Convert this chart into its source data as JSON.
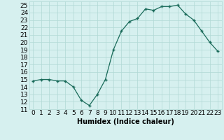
{
  "x": [
    0,
    1,
    2,
    3,
    4,
    5,
    6,
    7,
    8,
    9,
    10,
    11,
    12,
    13,
    14,
    15,
    16,
    17,
    18,
    19,
    20,
    21,
    22,
    23
  ],
  "y": [
    14.8,
    15.0,
    15.0,
    14.8,
    14.8,
    14.0,
    12.2,
    11.5,
    13.0,
    15.0,
    19.0,
    21.5,
    22.8,
    23.2,
    24.5,
    24.3,
    24.8,
    24.8,
    25.0,
    23.8,
    23.0,
    21.5,
    20.0,
    18.8
  ],
  "xlabel": "Humidex (Indice chaleur)",
  "ylabel": "",
  "xlim": [
    -0.5,
    23.5
  ],
  "ylim": [
    11,
    25.5
  ],
  "yticks": [
    11,
    12,
    13,
    14,
    15,
    16,
    17,
    18,
    19,
    20,
    21,
    22,
    23,
    24,
    25
  ],
  "xticks": [
    0,
    1,
    2,
    3,
    4,
    5,
    6,
    7,
    8,
    9,
    10,
    11,
    12,
    13,
    14,
    15,
    16,
    17,
    18,
    19,
    20,
    21,
    22,
    23
  ],
  "line_color": "#1a6b5a",
  "marker": "+",
  "bg_color": "#d6f0ef",
  "grid_color": "#b0d8d5",
  "label_fontsize": 7,
  "tick_fontsize": 6.5
}
